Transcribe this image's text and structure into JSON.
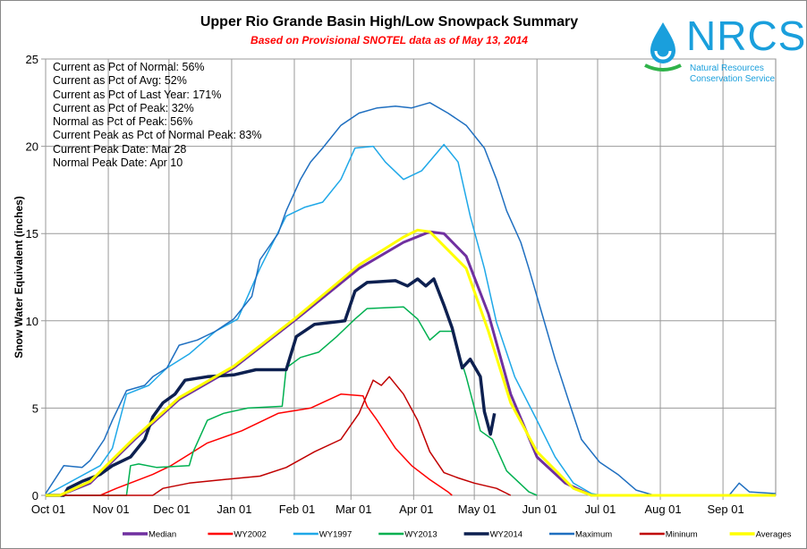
{
  "chart_data": {
    "type": "line",
    "title": "Upper Rio Grande Basin High/Low Snowpack Summary",
    "subtitle": "Based on Provisional SNOTEL data as of May 13, 2014",
    "ylabel": "Snow Water Equivalent (inches)",
    "xlabel": "",
    "ylim": [
      0,
      25
    ],
    "yticks": [
      "0",
      "5",
      "10",
      "15",
      "20",
      "25"
    ],
    "xlim_days": [
      0,
      361
    ],
    "xticks": [
      {
        "label": "Oct 01",
        "day": 0
      },
      {
        "label": "Nov 01",
        "day": 31
      },
      {
        "label": "Dec 01",
        "day": 61
      },
      {
        "label": "Jan 01",
        "day": 92
      },
      {
        "label": "Feb 01",
        "day": 123
      },
      {
        "label": "Mar 01",
        "day": 151
      },
      {
        "label": "Apr 01",
        "day": 182
      },
      {
        "label": "May 01",
        "day": 212
      },
      {
        "label": "Jun 01",
        "day": 243
      },
      {
        "label": "Jul 01",
        "day": 273
      },
      {
        "label": "Aug 01",
        "day": 304
      },
      {
        "label": "Sep 01",
        "day": 335
      }
    ],
    "grid": true,
    "legend_position": "bottom",
    "series": [
      {
        "name": "Median",
        "color": "#7030a0",
        "width": 3,
        "points": [
          [
            0,
            0
          ],
          [
            7,
            0
          ],
          [
            22,
            0.7
          ],
          [
            44,
            3.2
          ],
          [
            66,
            5.5
          ],
          [
            93,
            7.3
          ],
          [
            124,
            10.1
          ],
          [
            155,
            13
          ],
          [
            177,
            14.5
          ],
          [
            190,
            15.1
          ],
          [
            197,
            15
          ],
          [
            208,
            13.7
          ],
          [
            219,
            10.4
          ],
          [
            230,
            5.8
          ],
          [
            243,
            2.2
          ],
          [
            257,
            0.7
          ],
          [
            270,
            0
          ],
          [
            361,
            0
          ]
        ]
      },
      {
        "name": "WY2002",
        "color": "#ff0000",
        "width": 1.5,
        "points": [
          [
            0,
            0
          ],
          [
            27,
            0
          ],
          [
            35,
            0.4
          ],
          [
            53,
            1.2
          ],
          [
            62,
            1.7
          ],
          [
            80,
            3
          ],
          [
            97,
            3.7
          ],
          [
            115,
            4.7
          ],
          [
            131,
            5
          ],
          [
            146,
            5.8
          ],
          [
            157,
            5.7
          ],
          [
            159,
            5.1
          ],
          [
            164,
            4.3
          ],
          [
            173,
            2.7
          ],
          [
            181,
            1.7
          ],
          [
            190,
            0.9
          ],
          [
            199,
            0.2
          ],
          [
            201,
            0
          ]
        ]
      },
      {
        "name": "WY1997",
        "color": "#1fa8e8",
        "width": 1.5,
        "points": [
          [
            0,
            0
          ],
          [
            27,
            1.7
          ],
          [
            33,
            2.7
          ],
          [
            40,
            5.8
          ],
          [
            51,
            6.3
          ],
          [
            60,
            7.3
          ],
          [
            71,
            8.1
          ],
          [
            84,
            9.4
          ],
          [
            95,
            10.1
          ],
          [
            106,
            13
          ],
          [
            119,
            16
          ],
          [
            128,
            16.5
          ],
          [
            137,
            16.8
          ],
          [
            146,
            18.1
          ],
          [
            153,
            19.9
          ],
          [
            162,
            20
          ],
          [
            168,
            19.1
          ],
          [
            177,
            18.1
          ],
          [
            186,
            18.6
          ],
          [
            197,
            20.1
          ],
          [
            204,
            19.1
          ],
          [
            210,
            16
          ],
          [
            217,
            13
          ],
          [
            223,
            9.9
          ],
          [
            232,
            6.8
          ],
          [
            243,
            4.3
          ],
          [
            252,
            2.2
          ],
          [
            261,
            0.7
          ],
          [
            270,
            0.1
          ],
          [
            275,
            0
          ]
        ]
      },
      {
        "name": "WY2013",
        "color": "#00b050",
        "width": 1.5,
        "points": [
          [
            0,
            0
          ],
          [
            40,
            0
          ],
          [
            42,
            1.7
          ],
          [
            46,
            1.8
          ],
          [
            55,
            1.6
          ],
          [
            71,
            1.7
          ],
          [
            73,
            2.5
          ],
          [
            80,
            4.3
          ],
          [
            88,
            4.7
          ],
          [
            100,
            5
          ],
          [
            117,
            5.1
          ],
          [
            119,
            7.3
          ],
          [
            126,
            7.9
          ],
          [
            135,
            8.2
          ],
          [
            144,
            9.1
          ],
          [
            153,
            10.1
          ],
          [
            159,
            10.7
          ],
          [
            177,
            10.8
          ],
          [
            184,
            10.1
          ],
          [
            190,
            8.9
          ],
          [
            195,
            9.4
          ],
          [
            201,
            9.4
          ],
          [
            208,
            6.8
          ],
          [
            215,
            3.7
          ],
          [
            221,
            3.2
          ],
          [
            228,
            1.4
          ],
          [
            239,
            0.2
          ],
          [
            243,
            0
          ]
        ]
      },
      {
        "name": "WY2014",
        "color": "#0d2050",
        "width": 3.5,
        "points": [
          [
            0,
            0
          ],
          [
            9,
            0
          ],
          [
            11,
            0.4
          ],
          [
            18,
            0.8
          ],
          [
            27,
            1.2
          ],
          [
            33,
            1.7
          ],
          [
            42,
            2.2
          ],
          [
            49,
            3.2
          ],
          [
            53,
            4.5
          ],
          [
            58,
            5.3
          ],
          [
            64,
            5.8
          ],
          [
            69,
            6.6
          ],
          [
            80,
            6.8
          ],
          [
            93,
            6.9
          ],
          [
            104,
            7.2
          ],
          [
            119,
            7.2
          ],
          [
            124,
            9.1
          ],
          [
            133,
            9.8
          ],
          [
            148,
            10
          ],
          [
            153,
            11.7
          ],
          [
            159,
            12.2
          ],
          [
            173,
            12.3
          ],
          [
            179,
            12
          ],
          [
            184,
            12.4
          ],
          [
            188,
            12
          ],
          [
            192,
            12.4
          ],
          [
            197,
            10.9
          ],
          [
            201,
            9.6
          ],
          [
            206,
            7.3
          ],
          [
            210,
            7.8
          ],
          [
            215,
            6.8
          ],
          [
            217,
            4.8
          ],
          [
            220,
            3.5
          ],
          [
            222,
            4.7
          ]
        ]
      },
      {
        "name": "Maximum",
        "color": "#1f6fc0",
        "width": 1.5,
        "points": [
          [
            0,
            0.1
          ],
          [
            9,
            1.7
          ],
          [
            18,
            1.6
          ],
          [
            22,
            2
          ],
          [
            29,
            3.2
          ],
          [
            33,
            4.3
          ],
          [
            40,
            6
          ],
          [
            49,
            6.3
          ],
          [
            53,
            6.8
          ],
          [
            60,
            7.3
          ],
          [
            66,
            8.6
          ],
          [
            75,
            8.9
          ],
          [
            84,
            9.4
          ],
          [
            93,
            10.1
          ],
          [
            102,
            11.4
          ],
          [
            106,
            13.5
          ],
          [
            115,
            15
          ],
          [
            119,
            16.3
          ],
          [
            126,
            18.1
          ],
          [
            131,
            19.1
          ],
          [
            137,
            19.9
          ],
          [
            146,
            21.2
          ],
          [
            155,
            21.9
          ],
          [
            164,
            22.2
          ],
          [
            173,
            22.3
          ],
          [
            181,
            22.2
          ],
          [
            190,
            22.5
          ],
          [
            199,
            21.9
          ],
          [
            208,
            21.2
          ],
          [
            217,
            19.9
          ],
          [
            223,
            18.1
          ],
          [
            228,
            16.3
          ],
          [
            235,
            14.5
          ],
          [
            239,
            13
          ],
          [
            243,
            11.4
          ],
          [
            248,
            9.4
          ],
          [
            252,
            7.8
          ],
          [
            259,
            5.3
          ],
          [
            265,
            3.2
          ],
          [
            274,
            1.9
          ],
          [
            283,
            1.2
          ],
          [
            292,
            0.3
          ],
          [
            301,
            0
          ],
          [
            338,
            0
          ],
          [
            343,
            0.7
          ],
          [
            348,
            0.2
          ],
          [
            361,
            0.1
          ]
        ]
      },
      {
        "name": "Mininum",
        "color": "#c00000",
        "width": 1.5,
        "points": [
          [
            0,
            0
          ],
          [
            53,
            0
          ],
          [
            58,
            0.4
          ],
          [
            71,
            0.7
          ],
          [
            88,
            0.9
          ],
          [
            106,
            1.1
          ],
          [
            119,
            1.6
          ],
          [
            133,
            2.5
          ],
          [
            146,
            3.2
          ],
          [
            155,
            4.7
          ],
          [
            162,
            6.6
          ],
          [
            166,
            6.3
          ],
          [
            170,
            6.8
          ],
          [
            177,
            5.8
          ],
          [
            184,
            4.3
          ],
          [
            190,
            2.5
          ],
          [
            197,
            1.3
          ],
          [
            204,
            1
          ],
          [
            212,
            0.7
          ],
          [
            223,
            0.4
          ],
          [
            230,
            0
          ]
        ]
      },
      {
        "name": "Averages",
        "color": "#ffff00",
        "width": 3,
        "points": [
          [
            0,
            0
          ],
          [
            7,
            0
          ],
          [
            22,
            0.8
          ],
          [
            44,
            3.3
          ],
          [
            66,
            5.6
          ],
          [
            93,
            7.4
          ],
          [
            124,
            10.2
          ],
          [
            155,
            13.2
          ],
          [
            177,
            14.8
          ],
          [
            184,
            15.2
          ],
          [
            190,
            15.1
          ],
          [
            208,
            13
          ],
          [
            219,
            9.4
          ],
          [
            230,
            5.3
          ],
          [
            243,
            2.5
          ],
          [
            261,
            0.4
          ],
          [
            270,
            0
          ],
          [
            361,
            0
          ]
        ]
      }
    ]
  },
  "stats": [
    "Current  as Pct of Normal:  56%",
    "Current  as Pct of Avg: 52%",
    "Current  as Pct of Last Year: 171%",
    "Current  as Pct of Peak: 32%",
    "Normal  as Pct of Peak: 56%",
    "Current  Peak as Pct of Normal  Peak: 83%",
    "Current  Peak Date:  Mar 28",
    "Normal  Peak Date:  Apr 10"
  ],
  "logo": {
    "name": "NRCS",
    "line1": "Natural Resources",
    "line2": "Conservation Service"
  }
}
